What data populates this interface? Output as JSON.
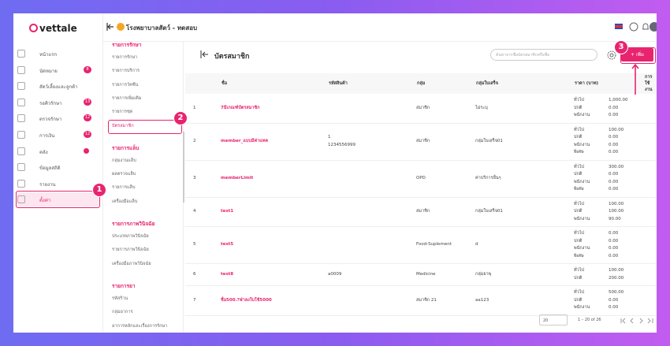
{
  "logo": "vettale",
  "clinic": "โรงพยาบาลสัตว์ - ทดสอบ",
  "sidebar": [
    {
      "label": "หน้าแรก"
    },
    {
      "label": "นัดหมาย",
      "badge": "8"
    },
    {
      "label": "สัตว์เลี้ยงและลูกค้า"
    },
    {
      "label": "รอคิวรักษา",
      "badge": "13"
    },
    {
      "label": "ตรวจรักษา",
      "badge": "12"
    },
    {
      "label": "การเงิน",
      "badge": "12"
    },
    {
      "label": "คลัง",
      "dot": true
    },
    {
      "label": "ข้อมูลสถิติ"
    },
    {
      "label": "รายงาน"
    },
    {
      "label": "ตั้งค่า",
      "active": true
    }
  ],
  "submenu": [
    {
      "title": "รายการรักษา",
      "items": [
        "รายการรักษา",
        "รายการบริการ",
        "รายการวัคซีน",
        "รายการเพิ่มเติม",
        "รายการชุด",
        "บัตรสมาชิก"
      ]
    },
    {
      "title": "รายการแล็บ",
      "items": [
        "กลุ่มงานแล็บ",
        "ผลตรวจแล็บ",
        "รายการแล็บ",
        "เครื่องมือแล็บ"
      ]
    },
    {
      "title": "รายการภาพวินิจฉัย",
      "items": [
        "ประเภทภาพวินิจฉัย",
        "รายการภาพวินิจฉัย",
        "เครื่องมือภาพวินิจฉัย"
      ]
    },
    {
      "title": "รายการยา",
      "items": [
        "รหัสร้าน",
        "กลุ่มอาการ",
        "อาการหลักและเรื่องการรักษา"
      ]
    }
  ],
  "page": {
    "title": "บัตรสมาชิก",
    "search_placeholder": "ค้นหาจากชื่อบัตรสมาชิกหรือชื่อ",
    "add_button": "+ เพิ่ม"
  },
  "table": {
    "headers": [
      "ชื่อ",
      "รหัสสินค้า",
      "กลุ่ม",
      "กลุ่มใบเสร็จ",
      "ราคา (บาท)",
      "การใช้งาน"
    ],
    "rows": [
      {
        "no": "1",
        "name": "7มีเกณฑ์บัตรสมาชิก",
        "code": [],
        "group": "สมาชิก",
        "receipt": "ไม่ระบุ",
        "prices": [
          [
            "ทั่วไป",
            "1,000.00"
          ],
          [
            "ปกติ",
            "0.00"
          ],
          [
            "พนักงาน",
            "0.00"
          ]
        ]
      },
      {
        "no": "2",
        "name": "member_แบบมีค่าแทค",
        "code": [
          "1",
          "1234556999"
        ],
        "group": "สมาชิก",
        "receipt": "กลุ่มใบเสร็จ01",
        "prices": [
          [
            "ทั่วไป",
            "100.00"
          ],
          [
            "ปกติ",
            "0.00"
          ],
          [
            "พนักงาน",
            "0.00"
          ],
          [
            "พิเศษ",
            "0.00"
          ]
        ]
      },
      {
        "no": "3",
        "name": "memberLimit",
        "code": [],
        "group": "OPD",
        "receipt": "ค่าบริการอื่นๆ",
        "prices": [
          [
            "ทั่วไป",
            "300.00"
          ],
          [
            "ปกติ",
            "0.00"
          ],
          [
            "พนักงาน",
            "0.00"
          ],
          [
            "พิเศษ",
            "0.00"
          ]
        ]
      },
      {
        "no": "4",
        "name": "test1",
        "code": [],
        "group": "สมาชิก",
        "receipt": "กลุ่มใบเสร็จ01",
        "prices": [
          [
            "ทั่วไป",
            "100.00"
          ],
          [
            "ปกติ",
            "100.00"
          ],
          [
            "พนักงาน",
            "90.00"
          ]
        ]
      },
      {
        "no": "5",
        "name": "test5",
        "code": [],
        "group": "Food-Suplement",
        "receipt": "d",
        "prices": [
          [
            "ทั่วไป",
            "0.00"
          ],
          [
            "ปกติ",
            "0.00"
          ],
          [
            "พนักงาน",
            "0.00"
          ],
          [
            "พิเศษ",
            "0.00"
          ]
        ]
      },
      {
        "no": "6",
        "name": "test8",
        "code": [
          "a0009"
        ],
        "group": "Medicine",
        "receipt": "กลุ่มยาพุ",
        "prices": [
          [
            "ทั่วไป",
            "100.00"
          ],
          [
            "ปกติ",
            "200.00"
          ]
        ]
      },
      {
        "no": "7",
        "name": "ชื่อ500.?ฟ่าลงใบใช้5000",
        "code": [],
        "group": "สมาชิก 21",
        "receipt": "aa123",
        "prices": [
          [
            "ทั่วไป",
            "500.00"
          ],
          [
            "ปกติ",
            "0.00"
          ],
          [
            "พนักงาน",
            "0.00"
          ]
        ]
      }
    ]
  },
  "pagination": {
    "page_size": "20",
    "range": "1 – 20 of 26"
  },
  "annotations": [
    "1",
    "2",
    "3"
  ]
}
